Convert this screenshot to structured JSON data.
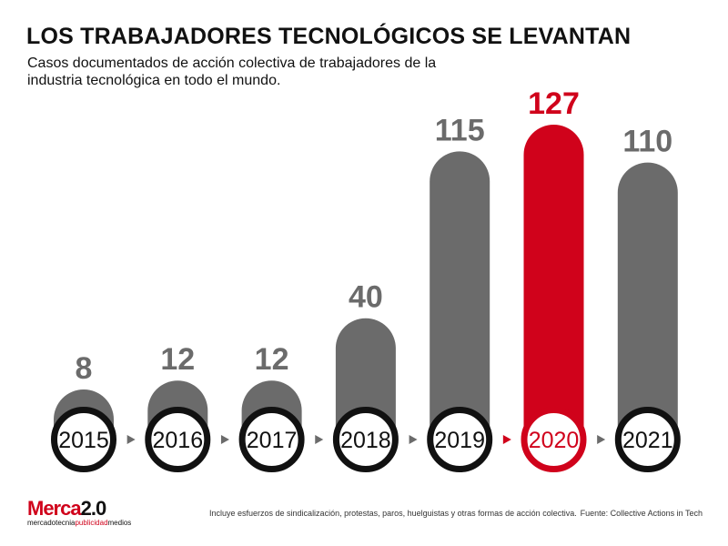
{
  "title": "LOS TRABAJADORES TECNOLÓGICOS SE LEVANTAN",
  "subtitle": "Casos documentados de acción colectiva de trabajadores de la industria tecnológica en todo el mundo.",
  "footer": {
    "note": "Incluye esfuerzos de sindicalización, protestas, paros, huelguistas y otras formas de acción colectiva.",
    "source": "Fuente: Collective Actions in Tech"
  },
  "logo": {
    "brand": "Merca",
    "brand_number": "2.0",
    "tagline_left": "mercadotecnia",
    "tagline_mid": "publicidad",
    "tagline_right": "medios"
  },
  "colors": {
    "bar": "#6b6b6b",
    "highlight": "#d0021b",
    "ring": "#111111",
    "label": "#6b6b6b"
  },
  "chart_data": {
    "type": "bar",
    "categories": [
      "2015",
      "2016",
      "2017",
      "2018",
      "2019",
      "2020",
      "2021"
    ],
    "values": [
      8,
      12,
      12,
      40,
      115,
      127,
      110
    ],
    "highlight_category": "2020",
    "xlabel": "",
    "ylabel": "",
    "ylim": [
      0,
      127
    ]
  }
}
